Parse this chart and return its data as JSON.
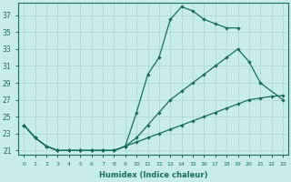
{
  "xlabel": "Humidex (Indice chaleur)",
  "bg_color": "#c8ece8",
  "grid_color": "#b0d8d4",
  "line_color": "#1a6b60",
  "xlim": [
    -0.5,
    23.5
  ],
  "ylim": [
    20.5,
    38.5
  ],
  "xticks": [
    0,
    1,
    2,
    3,
    4,
    5,
    6,
    7,
    8,
    9,
    10,
    11,
    12,
    13,
    14,
    15,
    16,
    17,
    18,
    19,
    20,
    21,
    22,
    23
  ],
  "yticks": [
    21,
    23,
    25,
    27,
    29,
    31,
    33,
    35,
    37
  ],
  "line_top_x": [
    0,
    1,
    2,
    3,
    4,
    5,
    6,
    7,
    8,
    9,
    10,
    11,
    12,
    13,
    14,
    15,
    16,
    17,
    18,
    19
  ],
  "line_top_y": [
    24,
    22.5,
    21.5,
    21,
    21,
    21,
    21,
    21,
    21,
    21.5,
    25.5,
    30,
    32,
    36.5,
    38,
    37.5,
    36.5,
    36,
    35.5,
    35.5
  ],
  "line_mid_x": [
    0,
    1,
    2,
    3,
    4,
    5,
    6,
    7,
    8,
    9,
    10,
    11,
    12,
    13,
    14,
    15,
    16,
    17,
    18,
    19,
    20,
    21,
    23
  ],
  "line_mid_y": [
    24,
    22.5,
    21.5,
    21,
    21,
    21,
    21,
    21,
    21,
    21.5,
    22.5,
    24,
    25.5,
    27,
    28,
    29,
    30,
    31,
    32,
    33,
    31.5,
    29,
    27
  ],
  "line_bot_x": [
    0,
    1,
    2,
    3,
    4,
    5,
    6,
    7,
    8,
    9,
    10,
    11,
    12,
    13,
    14,
    15,
    16,
    17,
    18,
    19,
    20,
    21,
    22,
    23
  ],
  "line_bot_y": [
    24,
    22.5,
    21.5,
    21,
    21,
    21,
    21,
    21,
    21,
    21.5,
    22,
    22.5,
    23,
    23.5,
    24,
    24.5,
    25,
    25.5,
    26,
    26.5,
    27,
    27.2,
    27.4,
    27.5
  ]
}
